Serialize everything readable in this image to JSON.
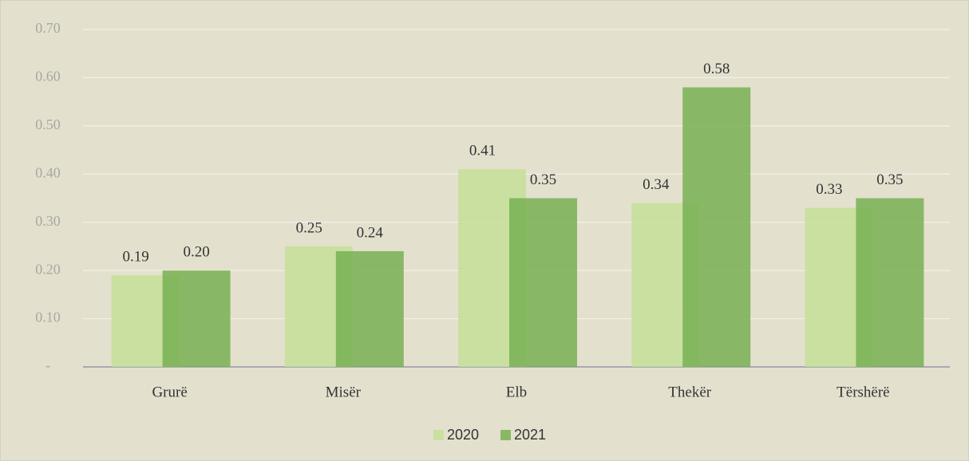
{
  "chart_data": {
    "type": "bar",
    "categories": [
      "Grurë",
      "Misër",
      "Elb",
      "Thekër",
      "Tërshërë"
    ],
    "series": [
      {
        "name": "2020",
        "color": "#c4df98",
        "values": [
          0.19,
          0.25,
          0.41,
          0.34,
          0.33
        ],
        "value_labels": [
          "0.19",
          "0.25",
          "0.41",
          "0.34",
          "0.33"
        ]
      },
      {
        "name": "2021",
        "color": "#78b052",
        "values": [
          0.2,
          0.24,
          0.35,
          0.58,
          0.35
        ],
        "value_labels": [
          "0.20",
          "0.24",
          "0.35",
          "0.58",
          "0.35"
        ]
      }
    ],
    "ylim": [
      0,
      0.7
    ],
    "yticks": [
      {
        "value": 0,
        "label": "-"
      },
      {
        "value": 0.1,
        "label": "0.10"
      },
      {
        "value": 0.2,
        "label": "0.20"
      },
      {
        "value": 0.3,
        "label": "0.30"
      },
      {
        "value": 0.4,
        "label": "0.40"
      },
      {
        "value": 0.5,
        "label": "0.50"
      },
      {
        "value": 0.6,
        "label": "0.60"
      },
      {
        "value": 0.7,
        "label": "0.70"
      }
    ],
    "grid": true,
    "legend": "bottom"
  }
}
